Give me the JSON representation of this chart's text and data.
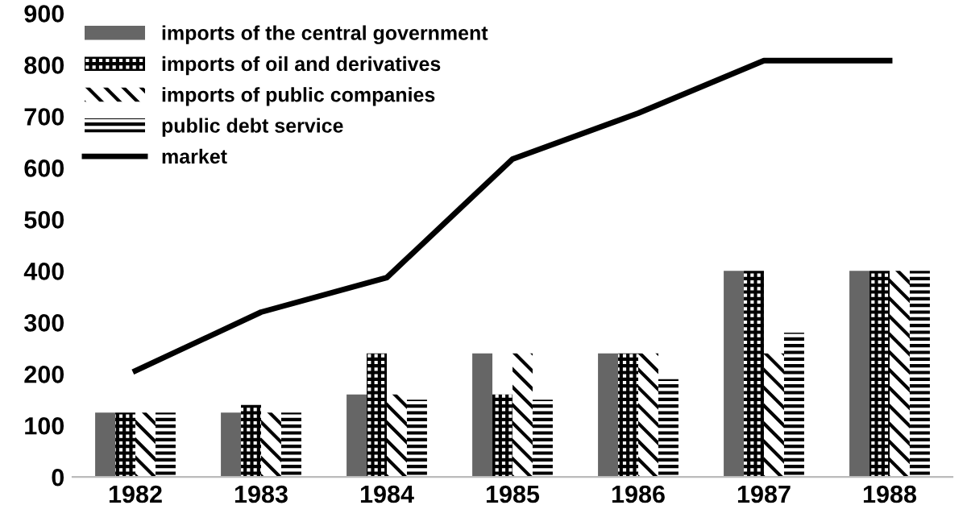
{
  "chart_data": {
    "type": "bar",
    "categories": [
      "1982",
      "1983",
      "1984",
      "1985",
      "1986",
      "1987",
      "1988"
    ],
    "series": [
      {
        "name": "imports of the central government",
        "color": "#666666",
        "values": [
          125,
          125,
          160,
          240,
          240,
          400,
          400
        ]
      },
      {
        "name": "imports of oil and derivatives",
        "color": "#000000",
        "values": [
          125,
          140,
          240,
          160,
          240,
          400,
          400
        ]
      },
      {
        "name": "imports of public companies",
        "color": "#000000",
        "values": [
          125,
          125,
          160,
          240,
          240,
          240,
          400
        ]
      },
      {
        "name": "public debt service",
        "color": "#000000",
        "values": [
          125,
          125,
          150,
          150,
          190,
          280,
          400
        ]
      },
      {
        "name": "market",
        "type": "line",
        "color": "#000000",
        "values": [
          206,
          320,
          387,
          617,
          706,
          808,
          808
        ]
      }
    ],
    "ylim": [
      0,
      900
    ],
    "yticks": [
      0,
      100,
      200,
      300,
      400,
      500,
      600,
      700,
      800,
      900
    ],
    "grid": false,
    "legend": "top left",
    "marker": "none",
    "line_style": "solid"
  }
}
